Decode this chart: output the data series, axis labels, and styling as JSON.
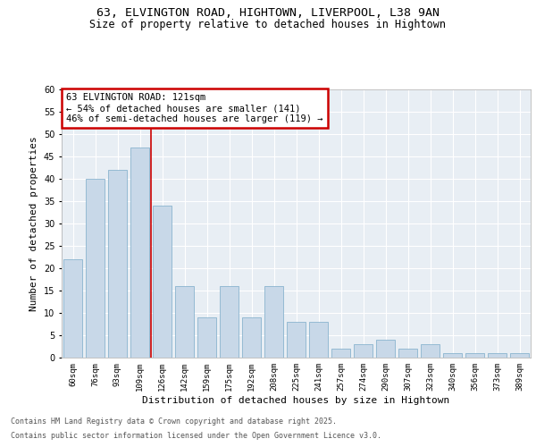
{
  "title_line1": "63, ELVINGTON ROAD, HIGHTOWN, LIVERPOOL, L38 9AN",
  "title_line2": "Size of property relative to detached houses in Hightown",
  "xlabel": "Distribution of detached houses by size in Hightown",
  "ylabel": "Number of detached properties",
  "categories": [
    "60sqm",
    "76sqm",
    "93sqm",
    "109sqm",
    "126sqm",
    "142sqm",
    "159sqm",
    "175sqm",
    "192sqm",
    "208sqm",
    "225sqm",
    "241sqm",
    "257sqm",
    "274sqm",
    "290sqm",
    "307sqm",
    "323sqm",
    "340sqm",
    "356sqm",
    "373sqm",
    "389sqm"
  ],
  "values": [
    22,
    40,
    42,
    47,
    34,
    16,
    9,
    16,
    9,
    16,
    8,
    8,
    2,
    3,
    4,
    2,
    3,
    1,
    1,
    1,
    1
  ],
  "bar_color": "#c8d8e8",
  "bar_edge_color": "#7aaac8",
  "vline_color": "#cc0000",
  "vline_pos": 3.5,
  "box_edge_color": "#cc0000",
  "ylim": [
    0,
    60
  ],
  "yticks": [
    0,
    5,
    10,
    15,
    20,
    25,
    30,
    35,
    40,
    45,
    50,
    55,
    60
  ],
  "background_color": "#e8eef4",
  "grid_color": "#ffffff",
  "footer_line1": "Contains HM Land Registry data © Crown copyright and database right 2025.",
  "footer_line2": "Contains public sector information licensed under the Open Government Licence v3.0.",
  "annotation_line1": "63 ELVINGTON ROAD: 121sqm",
  "annotation_line2": "← 54% of detached houses are smaller (141)",
  "annotation_line3": "46% of semi-detached houses are larger (119) →"
}
